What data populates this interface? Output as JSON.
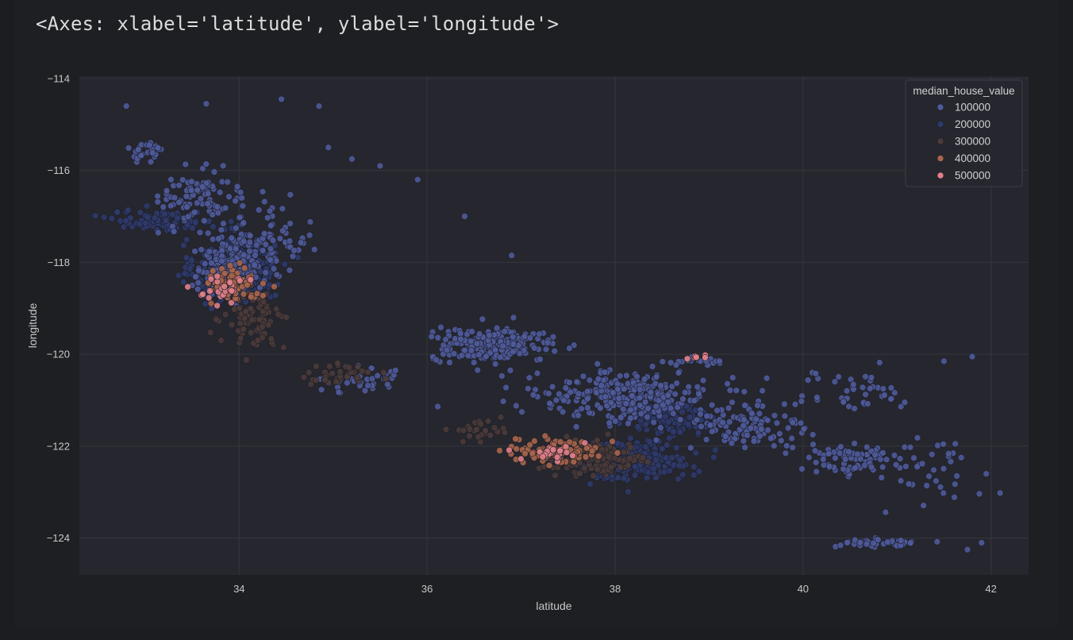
{
  "output": {
    "repr_text": "<Axes: xlabel='latitude', ylabel='longitude'>"
  },
  "chart_data": {
    "type": "scatter",
    "xlabel": "latitude",
    "ylabel": "longitude",
    "xlim": [
      32.3,
      42.4
    ],
    "ylim": [
      -124.8,
      -113.95
    ],
    "x_ticks": [
      34,
      36,
      38,
      40,
      42
    ],
    "y_ticks": [
      -114,
      -116,
      -118,
      -120,
      -122,
      -124
    ],
    "grid": true,
    "legend": {
      "title": "median_house_value",
      "placement": "top-right",
      "entries": [
        {
          "label": "100000",
          "color": "#4f5a9a"
        },
        {
          "label": "200000",
          "color": "#2f3a6b"
        },
        {
          "label": "300000",
          "color": "#4a3b3a"
        },
        {
          "label": "400000",
          "color": "#a8654d"
        },
        {
          "label": "500000",
          "color": "#e07f8a"
        }
      ]
    },
    "colors": {
      "background": "#26272e",
      "grid": "#34363e",
      "point_edge": "#1d1e24"
    },
    "clusters": [
      {
        "center": [
          33.95,
          -118.15
        ],
        "spread": [
          0.35,
          0.55
        ],
        "count": 420,
        "value": 200000
      },
      {
        "center": [
          33.9,
          -118.1
        ],
        "spread": [
          0.3,
          0.5
        ],
        "count": 160,
        "value": 100000
      },
      {
        "center": [
          33.2,
          -117.1
        ],
        "spread": [
          0.45,
          0.18
        ],
        "count": 110,
        "value": 200000
      },
      {
        "center": [
          33.6,
          -116.6
        ],
        "spread": [
          0.35,
          0.55
        ],
        "count": 90,
        "value": 100000
      },
      {
        "center": [
          33.0,
          -115.6
        ],
        "spread": [
          0.18,
          0.25
        ],
        "count": 25,
        "value": 100000
      },
      {
        "center": [
          34.15,
          -119.25
        ],
        "spread": [
          0.25,
          0.45
        ],
        "count": 80,
        "value": 300000
      },
      {
        "center": [
          33.9,
          -118.45
        ],
        "spread": [
          0.25,
          0.3
        ],
        "count": 70,
        "value": 400000
      },
      {
        "center": [
          33.85,
          -118.55
        ],
        "spread": [
          0.2,
          0.3
        ],
        "count": 26,
        "value": 500000
      },
      {
        "center": [
          34.3,
          -117.4
        ],
        "spread": [
          0.4,
          0.6
        ],
        "count": 80,
        "value": 100000
      },
      {
        "center": [
          35.0,
          -120.45
        ],
        "spread": [
          0.4,
          0.22
        ],
        "count": 35,
        "value": 300000
      },
      {
        "center": [
          35.3,
          -120.6
        ],
        "spread": [
          0.4,
          0.25
        ],
        "count": 35,
        "value": 100000
      },
      {
        "center": [
          36.7,
          -119.8
        ],
        "spread": [
          0.55,
          0.3
        ],
        "count": 210,
        "value": 100000
      },
      {
        "center": [
          38.1,
          -120.9
        ],
        "spread": [
          0.8,
          0.45
        ],
        "count": 280,
        "value": 100000
      },
      {
        "center": [
          37.8,
          -122.25
        ],
        "spread": [
          0.4,
          0.3
        ],
        "count": 170,
        "value": 300000
      },
      {
        "center": [
          37.4,
          -122.1
        ],
        "spread": [
          0.4,
          0.22
        ],
        "count": 90,
        "value": 400000
      },
      {
        "center": [
          37.35,
          -122.15
        ],
        "spread": [
          0.25,
          0.18
        ],
        "count": 22,
        "value": 500000
      },
      {
        "center": [
          38.2,
          -122.3
        ],
        "spread": [
          0.5,
          0.35
        ],
        "count": 220,
        "value": 200000
      },
      {
        "center": [
          38.6,
          -121.4
        ],
        "spread": [
          0.4,
          0.3
        ],
        "count": 120,
        "value": 200000
      },
      {
        "center": [
          39.4,
          -121.6
        ],
        "spread": [
          0.5,
          0.45
        ],
        "count": 110,
        "value": 100000
      },
      {
        "center": [
          40.5,
          -122.3
        ],
        "spread": [
          0.5,
          0.35
        ],
        "count": 70,
        "value": 100000
      },
      {
        "center": [
          40.8,
          -124.1
        ],
        "spread": [
          0.4,
          0.08
        ],
        "count": 40,
        "value": 100000
      },
      {
        "center": [
          41.3,
          -122.6
        ],
        "spread": [
          0.5,
          0.6
        ],
        "count": 40,
        "value": 100000
      },
      {
        "center": [
          40.4,
          -120.8
        ],
        "spread": [
          0.7,
          0.4
        ],
        "count": 45,
        "value": 100000
      },
      {
        "center": [
          36.5,
          -121.7
        ],
        "spread": [
          0.25,
          0.2
        ],
        "count": 25,
        "value": 300000
      },
      {
        "center": [
          38.9,
          -120.05
        ],
        "spread": [
          0.1,
          0.05
        ],
        "count": 6,
        "value": 500000
      },
      {
        "center": [
          38.95,
          -120.15
        ],
        "spread": [
          0.35,
          0.1
        ],
        "count": 20,
        "value": 100000
      }
    ],
    "outliers": [
      {
        "x": 32.8,
        "y": -114.6,
        "value": 100000
      },
      {
        "x": 33.65,
        "y": -114.55,
        "value": 100000
      },
      {
        "x": 34.45,
        "y": -114.45,
        "value": 100000
      },
      {
        "x": 34.85,
        "y": -114.6,
        "value": 100000
      },
      {
        "x": 35.9,
        "y": -116.2,
        "value": 100000
      },
      {
        "x": 36.4,
        "y": -117.0,
        "value": 100000
      },
      {
        "x": 36.9,
        "y": -117.85,
        "value": 100000
      },
      {
        "x": 35.5,
        "y": -115.9,
        "value": 100000
      },
      {
        "x": 35.2,
        "y": -115.75,
        "value": 100000
      },
      {
        "x": 34.95,
        "y": -115.5,
        "value": 100000
      },
      {
        "x": 41.8,
        "y": -120.05,
        "value": 100000
      },
      {
        "x": 41.5,
        "y": -120.15,
        "value": 100000
      },
      {
        "x": 41.9,
        "y": -124.1,
        "value": 100000
      },
      {
        "x": 41.75,
        "y": -124.25,
        "value": 100000
      },
      {
        "x": 41.95,
        "y": -122.6,
        "value": 100000
      }
    ]
  }
}
